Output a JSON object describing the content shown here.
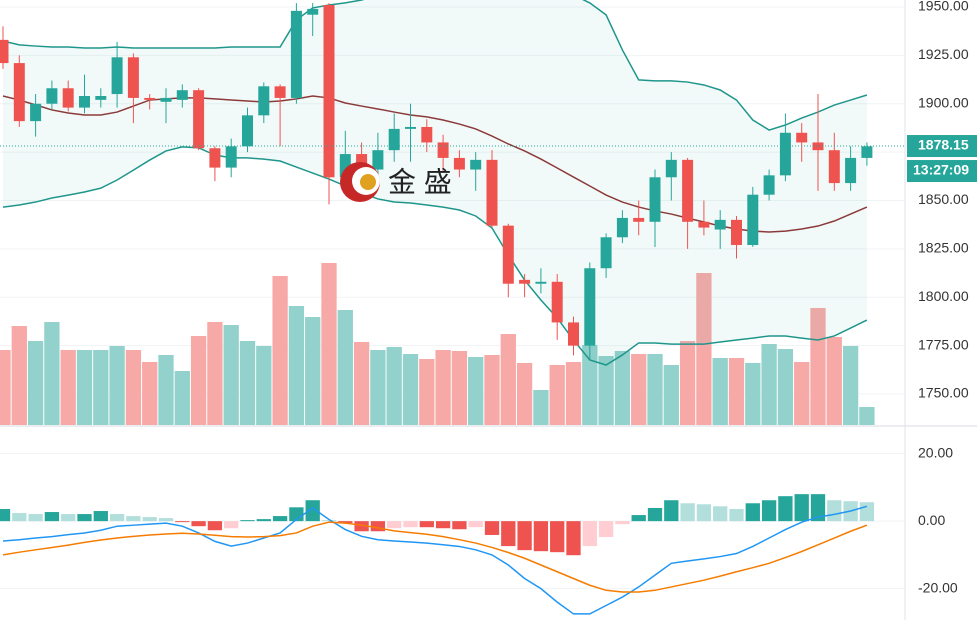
{
  "watermark": "金 盛",
  "chart_data": [
    {
      "type": "candlestick",
      "open": [
        1933,
        1921,
        1891,
        1900,
        1908,
        1898,
        1902,
        1905,
        1924,
        1903,
        1901,
        1902,
        1907,
        1877,
        1867,
        1878,
        1894,
        1909,
        1903,
        1946,
        1951,
        1862,
        1874,
        1866,
        1876,
        1887,
        1888,
        1880,
        1872,
        1866,
        1871,
        1837,
        1809,
        1807,
        1808,
        1787,
        1775,
        1815,
        1831,
        1841,
        1839,
        1862,
        1871,
        1839,
        1835,
        1840,
        1827,
        1853,
        1863,
        1885,
        1880,
        1876,
        1859,
        1872
      ],
      "high": [
        1940,
        1925,
        1905,
        1912,
        1912,
        1915,
        1908,
        1932,
        1926,
        1905,
        1908,
        1910,
        1908,
        1878,
        1882,
        1898,
        1911,
        1910,
        1952,
        1952,
        1952,
        1886,
        1880,
        1885,
        1895,
        1900,
        1892,
        1884,
        1876,
        1875,
        1876,
        1838,
        1812,
        1815,
        1812,
        1790,
        1818,
        1833,
        1845,
        1850,
        1866,
        1875,
        1872,
        1850,
        1845,
        1842,
        1857,
        1866,
        1895,
        1890,
        1905,
        1885,
        1878,
        1880
      ],
      "low": [
        1918,
        1888,
        1883,
        1897,
        1896,
        1895,
        1898,
        1898,
        1890,
        1897,
        1890,
        1898,
        1876,
        1860,
        1862,
        1875,
        1890,
        1878,
        1900,
        1935,
        1848,
        1855,
        1860,
        1860,
        1870,
        1870,
        1875,
        1865,
        1862,
        1855,
        1836,
        1800,
        1800,
        1802,
        1778,
        1770,
        1768,
        1810,
        1828,
        1832,
        1826,
        1850,
        1825,
        1832,
        1825,
        1820,
        1826,
        1850,
        1860,
        1870,
        1855,
        1855,
        1855,
        1868
      ],
      "close": [
        1921,
        1891,
        1900,
        1908,
        1898,
        1904,
        1904,
        1924,
        1903,
        1902,
        1903,
        1907,
        1877,
        1867,
        1878,
        1894,
        1909,
        1903,
        1948,
        1949,
        1862,
        1874,
        1866,
        1876,
        1887,
        1888,
        1880,
        1872,
        1866,
        1871,
        1837,
        1807,
        1807,
        1808,
        1787,
        1775,
        1815,
        1831,
        1841,
        1839,
        1862,
        1871,
        1839,
        1836,
        1840,
        1827,
        1853,
        1863,
        1885,
        1880,
        1876,
        1859,
        1872,
        1878
      ],
      "volume": [
        75,
        99,
        84,
        103,
        75,
        75,
        75,
        79,
        75,
        63,
        70,
        54,
        89,
        103,
        100,
        84,
        79,
        149,
        119,
        108,
        162,
        115,
        83,
        75,
        78,
        71,
        66,
        75,
        74,
        68,
        70,
        91,
        62,
        35,
        60,
        63,
        80,
        69,
        74,
        71,
        71,
        60,
        84,
        152,
        67,
        67,
        62,
        81,
        76,
        63,
        117,
        88,
        79,
        18
      ],
      "up_color": "#26a69a",
      "down_color": "#ef5350",
      "volume_up_color": "#93d2cc",
      "volume_down_color": "#f7a9a7",
      "series": [
        {
          "color": "#1f968b",
          "values": [
            1932.4,
            1930.4,
            1929.8,
            1929.3,
            1929.3,
            1928.8,
            1928.8,
            1929.3,
            1928.8,
            1928.8,
            1928.8,
            1928.8,
            1928.8,
            1928.8,
            1929.3,
            1929.3,
            1929.3,
            1929.3,
            1943.3,
            1949.5,
            1951.0,
            1952.1,
            1953.6,
            1956.2,
            1958.8,
            1960.9,
            1962.4,
            1963.4,
            1964.0,
            1964.5,
            1965.0,
            1964.5,
            1964.0,
            1962.4,
            1959.8,
            1956.2,
            1952.1,
            1945.9,
            1927.8,
            1912.3,
            1911.8,
            1911.8,
            1911.2,
            1909.7,
            1907.1,
            1901.9,
            1891.6,
            1886.4,
            1889.0,
            1892.6,
            1895.7,
            1899.3,
            1901.9,
            1904.5
          ]
        },
        {
          "color": "#8b3a3a",
          "values": [
            1904.0,
            1901.9,
            1899.4,
            1896.8,
            1895.2,
            1894.2,
            1894.2,
            1895.7,
            1898.8,
            1901.9,
            1902.5,
            1903.0,
            1903.0,
            1902.5,
            1901.9,
            1901.4,
            1900.9,
            1901.4,
            1902.5,
            1904.0,
            1903.0,
            1900.4,
            1898.8,
            1897.3,
            1895.7,
            1894.2,
            1893.2,
            1891.6,
            1889.5,
            1887.0,
            1883.3,
            1879.2,
            1875.6,
            1871.4,
            1866.8,
            1862.1,
            1857.5,
            1852.8,
            1849.2,
            1846.6,
            1844.6,
            1843.0,
            1840.9,
            1838.9,
            1836.8,
            1835.3,
            1834.2,
            1833.7,
            1834.2,
            1835.3,
            1836.8,
            1839.4,
            1843.0,
            1846.6
          ]
        },
        {
          "color": "#1f968b",
          "values": [
            1846.6,
            1847.7,
            1849.2,
            1851.3,
            1852.8,
            1854.4,
            1856.4,
            1860.6,
            1865.7,
            1870.9,
            1875.6,
            1877.7,
            1877.2,
            1873.5,
            1872.0,
            1872.0,
            1871.4,
            1870.4,
            1867.3,
            1864.2,
            1861.1,
            1857.5,
            1853.9,
            1850.8,
            1849.2,
            1848.7,
            1847.7,
            1846.6,
            1845.1,
            1842.0,
            1835.8,
            1821.8,
            1808.9,
            1798.6,
            1789.3,
            1777.9,
            1767.6,
            1765.0,
            1770.2,
            1776.4,
            1776.4,
            1775.8,
            1775.8,
            1775.8,
            1776.9,
            1777.9,
            1778.9,
            1780.0,
            1780.0,
            1778.9,
            1777.9,
            1780.0,
            1784.1,
            1788.2
          ]
        }
      ],
      "band_fill": "rgba(38,166,154,0.06)",
      "ylim": [
        1734.0,
        1953.6
      ],
      "yticks": [
        {
          "value": 1950,
          "label": "1950.00"
        },
        {
          "value": 1925,
          "label": "1925.00"
        },
        {
          "value": 1900,
          "label": "1900.00"
        },
        {
          "value": 1875,
          "label": "1875.00"
        },
        {
          "value": 1850,
          "label": "1850.00"
        },
        {
          "value": 1825,
          "label": "1825.00"
        },
        {
          "value": 1800,
          "label": "1800.00"
        },
        {
          "value": 1775,
          "label": "1775.00"
        },
        {
          "value": 1750,
          "label": "1750.00"
        }
      ],
      "grid": true,
      "last_price": {
        "value": 1878.15,
        "label": "1878.15"
      },
      "countdown": "13:27:09"
    },
    {
      "type": "macd",
      "histogram": [
        3.6,
        2.4,
        2.1,
        2.7,
        2.1,
        2.1,
        3.0,
        2.1,
        1.5,
        1.2,
        0.9,
        -0.3,
        -1.5,
        -2.7,
        -2.1,
        0.3,
        0.6,
        1.5,
        4.1,
        6.2,
        0.3,
        -0.6,
        -3.0,
        -3.0,
        -2.1,
        -1.8,
        -1.8,
        -2.1,
        -2.4,
        -1.8,
        -4.1,
        -7.4,
        -8.6,
        -8.9,
        -9.2,
        -10.1,
        -7.4,
        -4.7,
        -0.9,
        1.8,
        3.9,
        6.2,
        5.3,
        5.0,
        4.4,
        3.6,
        5.3,
        6.2,
        7.4,
        8.0,
        8.0,
        6.2,
        5.9,
        5.6
      ],
      "histogram_colors": {
        "up_rising": "#26a69a",
        "up_falling": "#b2dfdb",
        "down_falling": "#ef5350",
        "down_rising": "#ffcdd2"
      },
      "series": [
        {
          "color": "#2196f3",
          "values": [
            -5.9,
            -5.5,
            -5.0,
            -4.6,
            -4.0,
            -3.5,
            -2.7,
            -1.5,
            -1.2,
            -0.9,
            -0.6,
            -1.5,
            -3.5,
            -6.0,
            -7.4,
            -6.5,
            -5.0,
            -3.5,
            0.5,
            3.9,
            0.5,
            -2.5,
            -4.5,
            -5.5,
            -5.9,
            -6.2,
            -6.5,
            -7.0,
            -7.5,
            -8.5,
            -10.0,
            -13,
            -17,
            -20,
            -24,
            -27.5,
            -27.5,
            -25,
            -22.5,
            -19.5,
            -16,
            -12.5,
            -11.8,
            -11.2,
            -10.5,
            -9.6,
            -7.5,
            -5.0,
            -2.5,
            -0.3,
            1.2,
            2.0,
            3.0,
            4.4
          ]
        },
        {
          "color": "#f57c00",
          "values": [
            -10.0,
            -9.2,
            -8.5,
            -7.8,
            -7.1,
            -6.3,
            -5.6,
            -5.0,
            -4.5,
            -4.1,
            -3.8,
            -3.6,
            -3.8,
            -4.2,
            -4.6,
            -4.7,
            -4.6,
            -4.3,
            -3.5,
            -1.5,
            -0.3,
            -0.6,
            -1.2,
            -2.0,
            -2.9,
            -3.4,
            -3.9,
            -4.6,
            -5.5,
            -6.5,
            -7.8,
            -9.3,
            -11,
            -13,
            -15,
            -17,
            -19,
            -20.5,
            -21,
            -21,
            -20.5,
            -19.5,
            -18.5,
            -17.5,
            -16.3,
            -15,
            -13.8,
            -12.5,
            -10.8,
            -9,
            -7,
            -5,
            -3,
            -1.2
          ]
        }
      ],
      "ylim": [
        -29.3,
        27.9
      ],
      "yticks": [
        {
          "value": 20,
          "label": "20.00"
        },
        {
          "value": 0,
          "label": "0.00"
        },
        {
          "value": -20,
          "label": "-20.00"
        }
      ],
      "grid": true
    }
  ]
}
